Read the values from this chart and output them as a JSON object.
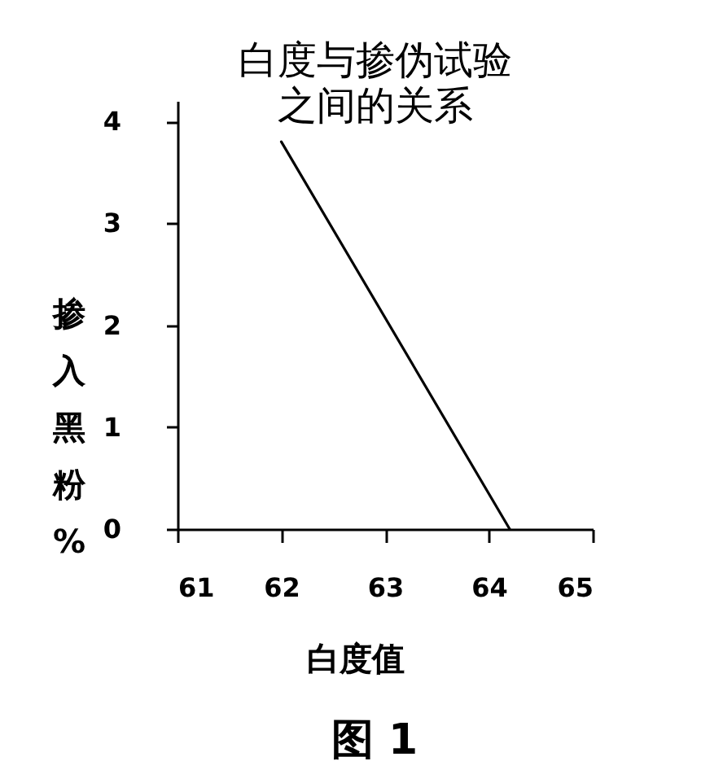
{
  "chart_data": {
    "type": "line",
    "title": "白度与掺伪试验",
    "subtitle": "之间的关系",
    "xlabel": "白度值",
    "ylabel": "掺入黑粉%",
    "annotations": [
      "图 1"
    ],
    "x": [
      62,
      64.2
    ],
    "series": [
      {
        "color": "#000000",
        "values": [
          3.8,
          0
        ]
      }
    ],
    "xlim": [
      61,
      65
    ],
    "ylim": [
      0,
      4.2
    ],
    "xticks": [
      61,
      62,
      63,
      64,
      65
    ],
    "yticks": [
      0,
      1,
      2,
      3,
      4
    ],
    "grid": false,
    "marker": "none",
    "line_style": "solid"
  }
}
